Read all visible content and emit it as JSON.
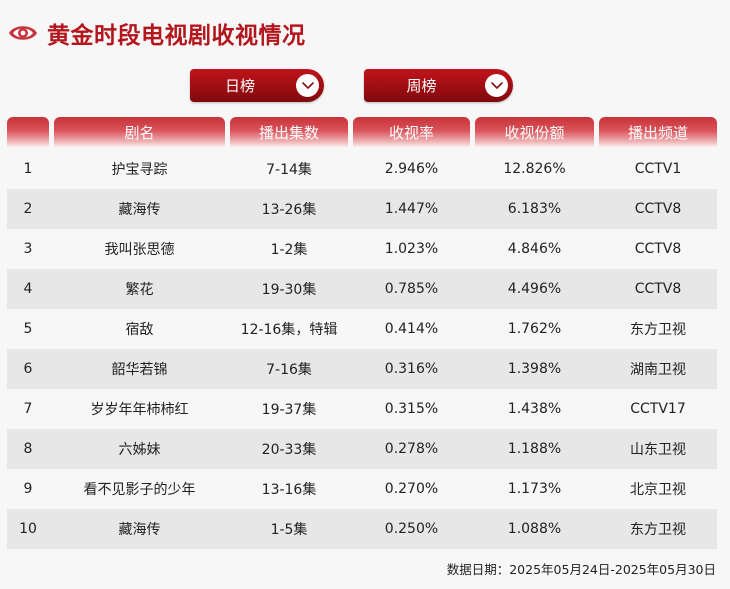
{
  "header": {
    "title": "黄金时段电视剧收视情况"
  },
  "tabs": {
    "daily": {
      "label": "日榜"
    },
    "weekly": {
      "label": "周榜"
    }
  },
  "table": {
    "columns": [
      "",
      "剧名",
      "播出集数",
      "收视率",
      "收视份额",
      "播出频道"
    ],
    "rows": [
      {
        "rank": "1",
        "name": "护宝寻踪",
        "episodes": "7-14集",
        "rating": "2.946%",
        "share": "12.826%",
        "channel": "CCTV1"
      },
      {
        "rank": "2",
        "name": "藏海传",
        "episodes": "13-26集",
        "rating": "1.447%",
        "share": "6.183%",
        "channel": "CCTV8"
      },
      {
        "rank": "3",
        "name": "我叫张思德",
        "episodes": "1-2集",
        "rating": "1.023%",
        "share": "4.846%",
        "channel": "CCTV8"
      },
      {
        "rank": "4",
        "name": "繁花",
        "episodes": "19-30集",
        "rating": "0.785%",
        "share": "4.496%",
        "channel": "CCTV8"
      },
      {
        "rank": "5",
        "name": "宿敌",
        "episodes": "12-16集，特辑",
        "rating": "0.414%",
        "share": "1.762%",
        "channel": "东方卫视"
      },
      {
        "rank": "6",
        "name": "韶华若锦",
        "episodes": "7-16集",
        "rating": "0.316%",
        "share": "1.398%",
        "channel": "湖南卫视"
      },
      {
        "rank": "7",
        "name": "岁岁年年柿柿红",
        "episodes": "19-37集",
        "rating": "0.315%",
        "share": "1.438%",
        "channel": "CCTV17"
      },
      {
        "rank": "8",
        "name": "六姊妹",
        "episodes": "20-33集",
        "rating": "0.278%",
        "share": "1.188%",
        "channel": "山东卫视"
      },
      {
        "rank": "9",
        "name": "看不见影子的少年",
        "episodes": "13-16集",
        "rating": "0.270%",
        "share": "1.173%",
        "channel": "北京卫视"
      },
      {
        "rank": "10",
        "name": "藏海传",
        "episodes": "1-5集",
        "rating": "0.250%",
        "share": "1.088%",
        "channel": "东方卫视"
      }
    ]
  },
  "footer": {
    "date_range": "数据日期：2025年05月24日-2025年05月30日"
  },
  "colors": {
    "accent": "#b3161c",
    "tab_dark": "#7e0a0e",
    "row_alt": "#e7e7e7"
  },
  "icons": {
    "title": "eye-icon",
    "tab_toggle": "chevron-down-icon"
  }
}
